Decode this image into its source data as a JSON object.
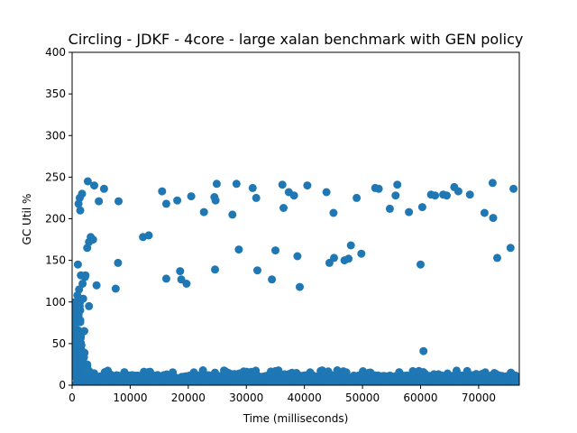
{
  "chart_data": {
    "type": "scatter",
    "title": "Circling - JDKF - 4core -  large xalan benchmark with GEN policy",
    "xlabel": "Time (milliseconds)",
    "ylabel": "GC Util %",
    "xlim": [
      0,
      77000
    ],
    "ylim": [
      0,
      400
    ],
    "x_ticks": [
      0,
      10000,
      20000,
      30000,
      40000,
      50000,
      60000,
      70000
    ],
    "y_ticks": [
      0,
      50,
      100,
      150,
      200,
      250,
      300,
      350,
      400
    ],
    "grid": false,
    "legend": "none",
    "marker_color": "#1f77b4",
    "series": [
      {
        "points": [
          [
            2700,
            245
          ],
          [
            3800,
            240
          ],
          [
            5500,
            236
          ],
          [
            1700,
            230
          ],
          [
            1300,
            225
          ],
          [
            1100,
            218
          ],
          [
            1400,
            210
          ],
          [
            4600,
            221
          ],
          [
            8000,
            221
          ],
          [
            2600,
            165
          ],
          [
            3200,
            178
          ],
          [
            3600,
            175
          ],
          [
            2900,
            172
          ],
          [
            7900,
            147
          ],
          [
            2200,
            130
          ],
          [
            4200,
            120
          ],
          [
            7500,
            116
          ],
          [
            2900,
            95
          ],
          [
            1000,
            145
          ],
          [
            1500,
            132
          ],
          [
            2300,
            132
          ],
          [
            1800,
            122
          ],
          [
            1200,
            115
          ],
          [
            900,
            108
          ],
          [
            1900,
            104
          ],
          [
            1300,
            95
          ],
          [
            1100,
            85
          ],
          [
            2100,
            65
          ],
          [
            1500,
            60
          ],
          [
            1000,
            55
          ],
          [
            1600,
            48
          ],
          [
            1200,
            40
          ],
          [
            15500,
            233
          ],
          [
            16200,
            218
          ],
          [
            18100,
            222
          ],
          [
            20500,
            227
          ],
          [
            22700,
            208
          ],
          [
            24500,
            226
          ],
          [
            24700,
            222
          ],
          [
            24900,
            242
          ],
          [
            27600,
            205
          ],
          [
            28300,
            242
          ],
          [
            31100,
            237
          ],
          [
            31700,
            225
          ],
          [
            36200,
            241
          ],
          [
            36400,
            213
          ],
          [
            37300,
            232
          ],
          [
            38200,
            228
          ],
          [
            40500,
            240
          ],
          [
            43800,
            232
          ],
          [
            45000,
            207
          ],
          [
            49000,
            225
          ],
          [
            52200,
            237
          ],
          [
            52800,
            236
          ],
          [
            54700,
            212
          ],
          [
            55700,
            228
          ],
          [
            56000,
            241
          ],
          [
            58000,
            208
          ],
          [
            60300,
            214
          ],
          [
            61800,
            229
          ],
          [
            62500,
            228
          ],
          [
            63900,
            229
          ],
          [
            64500,
            228
          ],
          [
            65800,
            238
          ],
          [
            66500,
            233
          ],
          [
            68500,
            229
          ],
          [
            71000,
            207
          ],
          [
            72400,
            243
          ],
          [
            72500,
            201
          ],
          [
            76000,
            236
          ],
          [
            12200,
            178
          ],
          [
            13200,
            180
          ],
          [
            16200,
            128
          ],
          [
            18600,
            137
          ],
          [
            18800,
            127
          ],
          [
            19700,
            122
          ],
          [
            24600,
            139
          ],
          [
            28700,
            163
          ],
          [
            31900,
            138
          ],
          [
            34400,
            127
          ],
          [
            35000,
            162
          ],
          [
            38800,
            155
          ],
          [
            39200,
            118
          ],
          [
            44300,
            147
          ],
          [
            45100,
            153
          ],
          [
            46900,
            150
          ],
          [
            47600,
            152
          ],
          [
            48000,
            168
          ],
          [
            49800,
            158
          ],
          [
            60000,
            145
          ],
          [
            73200,
            153
          ],
          [
            75500,
            165
          ],
          [
            60500,
            41
          ]
        ]
      }
    ],
    "band": {
      "x_range": [
        0,
        77000
      ],
      "y_min": 0,
      "y_max": 12,
      "y_spikes": 18,
      "description_y_range": [
        0,
        25
      ]
    }
  }
}
